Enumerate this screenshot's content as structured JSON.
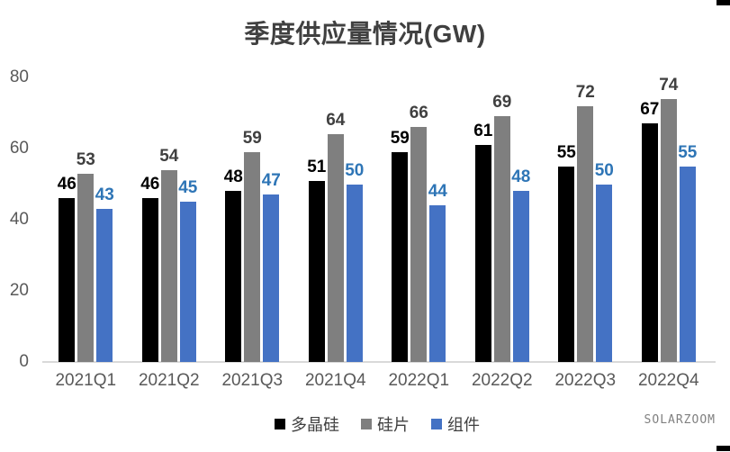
{
  "watermark": "SOLARZOOM",
  "chart_data": {
    "type": "bar",
    "title": "季度供应量情况(GW)",
    "categories": [
      "2021Q1",
      "2021Q2",
      "2021Q3",
      "2021Q4",
      "2022Q1",
      "2022Q2",
      "2022Q3",
      "2022Q4"
    ],
    "series": [
      {
        "key": "polysilicon",
        "name": "多晶硅",
        "color": "#000000",
        "label_color": "#000000",
        "values": [
          46,
          46,
          48,
          51,
          59,
          61,
          55,
          67
        ]
      },
      {
        "key": "wafer",
        "name": "硅片",
        "color": "#7f7f7f",
        "label_color": "#404040",
        "values": [
          53,
          54,
          59,
          64,
          66,
          69,
          72,
          74
        ]
      },
      {
        "key": "module",
        "name": "组件",
        "color": "#4472c4",
        "label_color": "#2e75b6",
        "values": [
          43,
          45,
          47,
          50,
          44,
          48,
          50,
          55
        ]
      }
    ],
    "xlabel": "",
    "ylabel": "",
    "ylim": [
      0,
      80
    ],
    "yticks": [
      0,
      20,
      40,
      60,
      80
    ],
    "grid": false,
    "data_labels": true,
    "legend_position": "bottom",
    "colors": {
      "title_text": "#404040",
      "axis_text": "#595959",
      "axis_line": "#d9d9d9",
      "background": "#ffffff"
    }
  }
}
